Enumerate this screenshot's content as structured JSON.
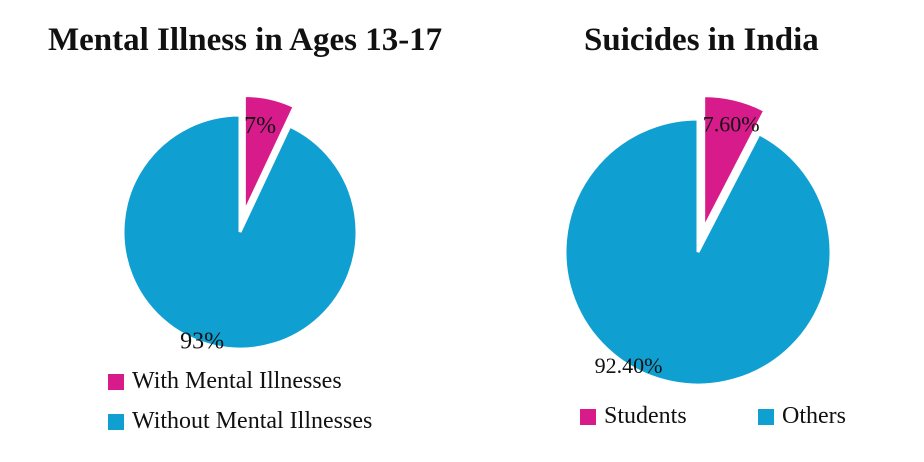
{
  "chart_data": [
    {
      "type": "pie",
      "title": "Mental Illness in Ages 13-17",
      "categories": [
        "With Mental Illnesses",
        "Without Mental Illnesses"
      ],
      "values": [
        7,
        93
      ],
      "data_labels": [
        "7%",
        "93%"
      ],
      "colors": [
        "#d81b8a",
        "#0f9fd0"
      ],
      "exploded": [
        true,
        false
      ],
      "legend_placement": "bottom"
    },
    {
      "type": "pie",
      "title": "Suicides in India",
      "categories": [
        "Students",
        "Others"
      ],
      "values": [
        7.6,
        92.4
      ],
      "data_labels": [
        "7.60%",
        "92.40%"
      ],
      "colors": [
        "#d81b8a",
        "#0f9fd0"
      ],
      "exploded": [
        true,
        false
      ],
      "legend_placement": "bottom"
    }
  ]
}
